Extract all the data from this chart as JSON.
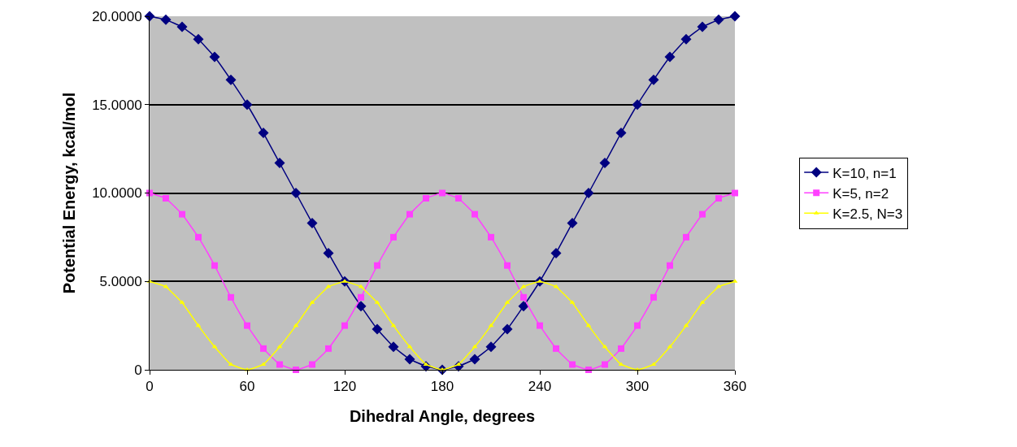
{
  "chart_data": {
    "type": "line",
    "xlabel": "Dihedral Angle, degrees",
    "ylabel": "Potential Energy, kcal/mol",
    "x": [
      0,
      10,
      20,
      30,
      40,
      50,
      60,
      70,
      80,
      90,
      100,
      110,
      120,
      130,
      140,
      150,
      160,
      170,
      180,
      190,
      200,
      210,
      220,
      230,
      240,
      250,
      260,
      270,
      280,
      290,
      300,
      310,
      320,
      330,
      340,
      350,
      360
    ],
    "series": [
      {
        "name": "K=10, n=1",
        "color": "#000080",
        "marker": "diamond",
        "values": [
          20,
          19.8,
          19.4,
          18.7,
          17.7,
          16.4,
          15,
          13.4,
          11.7,
          10,
          8.3,
          6.6,
          5,
          3.6,
          2.3,
          1.3,
          0.6,
          0.2,
          0,
          0.2,
          0.6,
          1.3,
          2.3,
          3.6,
          5,
          6.6,
          8.3,
          10,
          11.7,
          13.4,
          15,
          16.4,
          17.7,
          18.7,
          19.4,
          19.8,
          20
        ]
      },
      {
        "name": "K=5, n=2",
        "color": "#ff40ff",
        "marker": "square",
        "values": [
          10,
          9.7,
          8.8,
          7.5,
          5.9,
          4.1,
          2.5,
          1.2,
          0.3,
          0,
          0.3,
          1.2,
          2.5,
          4.1,
          5.9,
          7.5,
          8.8,
          9.7,
          10,
          9.7,
          8.8,
          7.5,
          5.9,
          4.1,
          2.5,
          1.2,
          0.3,
          0,
          0.3,
          1.2,
          2.5,
          4.1,
          5.9,
          7.5,
          8.8,
          9.7,
          10
        ]
      },
      {
        "name": "K=2.5, N=3",
        "color": "#ffff00",
        "marker": "triangle",
        "values": [
          5,
          4.7,
          3.8,
          2.5,
          1.3,
          0.3,
          0,
          0.3,
          1.3,
          2.5,
          3.8,
          4.7,
          5,
          4.7,
          3.8,
          2.5,
          1.3,
          0.3,
          0,
          0.3,
          1.3,
          2.5,
          3.8,
          4.7,
          5,
          4.7,
          3.8,
          2.5,
          1.3,
          0.3,
          0,
          0.3,
          1.3,
          2.5,
          3.8,
          4.7,
          5
        ]
      }
    ],
    "xlim": [
      0,
      360
    ],
    "xticks": [
      0,
      60,
      120,
      180,
      240,
      300,
      360
    ],
    "ylim": [
      0,
      20
    ],
    "yticks": [
      {
        "value": 0,
        "label": "0"
      },
      {
        "value": 5,
        "label": "5.0000"
      },
      {
        "value": 10,
        "label": "10.0000"
      },
      {
        "value": 15,
        "label": "15.0000"
      },
      {
        "value": 20,
        "label": "20.0000"
      }
    ],
    "grid": "y",
    "legend": "right",
    "line_style": "solid"
  }
}
